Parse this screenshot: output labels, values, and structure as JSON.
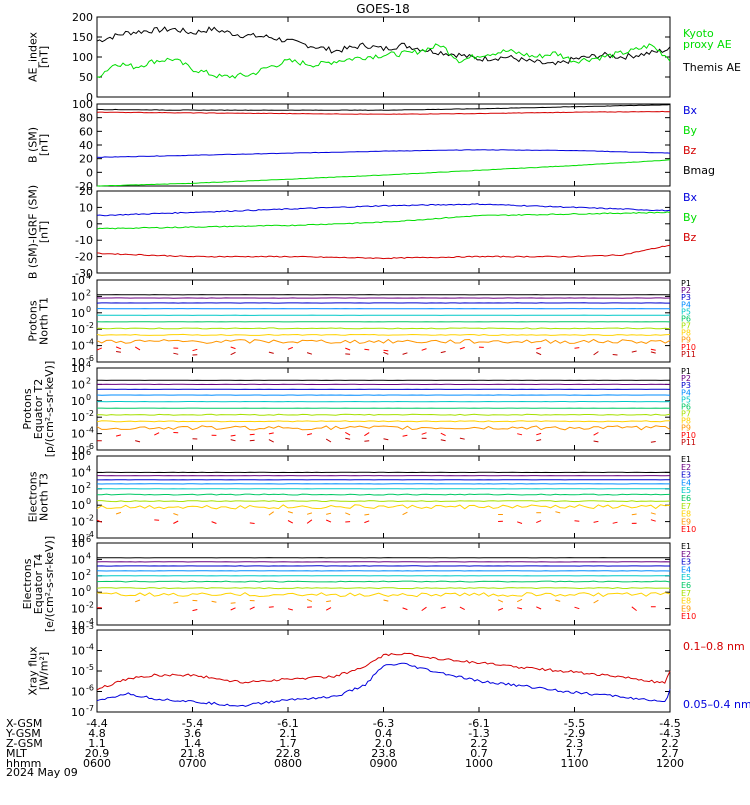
{
  "figure": {
    "title": "GOES-18",
    "date_label": "2024 May 09"
  },
  "colors": {
    "black": "#000000",
    "red": "#d40000",
    "green": "#00dd00",
    "blue": "#0000dd",
    "channel_palette": [
      "#000000",
      "#6a0080",
      "#0000cc",
      "#008cff",
      "#00c8c8",
      "#00c864",
      "#a6e000",
      "#ffd200",
      "#ff9600",
      "#ff0000",
      "#c00000"
    ]
  },
  "time_axis": {
    "ticks": [
      "0600",
      "0700",
      "0800",
      "0900",
      "1000",
      "1100",
      "1200"
    ],
    "start_hour": 6,
    "end_hour": 12
  },
  "footer": {
    "row_labels": [
      "X-GSM",
      "Y-GSM",
      "Z-GSM",
      "MLT",
      "hhmm"
    ],
    "x_gsm": [
      "-4.4",
      "-5.4",
      "-6.1",
      "-6.3",
      "-6.1",
      "-5.5",
      "-4.5"
    ],
    "y_gsm": [
      "4.8",
      "3.6",
      "2.1",
      "0.4",
      "-1.3",
      "-2.9",
      "-4.3"
    ],
    "z_gsm": [
      "1.1",
      "1.4",
      "1.7",
      "2.0",
      "2.2",
      "2.3",
      "2.2"
    ],
    "mlt": [
      "20.9",
      "21.8",
      "22.8",
      "23.8",
      "0.7",
      "1.7",
      "2.7"
    ],
    "hhmm": [
      "0600",
      "0700",
      "0800",
      "0900",
      "1000",
      "1100",
      "1200"
    ]
  },
  "chart_data": [
    {
      "type": "line",
      "ylabel": "AE_index\n[nT]",
      "ylim": [
        0,
        200
      ],
      "yticks": [
        "0",
        "50",
        "100",
        "150",
        "200"
      ],
      "scale": "linear",
      "legend": [
        {
          "label": "Kyoto\nproxy AE",
          "color": "green"
        },
        {
          "label": "Themis AE",
          "color": "black"
        }
      ],
      "series": [
        {
          "name": "Themis AE",
          "color": "black",
          "x": [
            6.0,
            6.3,
            6.5,
            6.8,
            7.0,
            7.2,
            7.5,
            7.8,
            8.0,
            8.3,
            8.5,
            8.8,
            9.0,
            9.2,
            9.5,
            9.8,
            10.0,
            10.3,
            10.5,
            10.8,
            11.0,
            11.3,
            11.5,
            11.8,
            12.0
          ],
          "y": [
            140,
            160,
            165,
            170,
            160,
            170,
            155,
            150,
            140,
            125,
            115,
            130,
            120,
            130,
            115,
            105,
            95,
            100,
            90,
            80,
            95,
            105,
            100,
            110,
            120
          ]
        },
        {
          "name": "Kyoto proxy AE",
          "color": "green",
          "x": [
            6.0,
            6.2,
            6.4,
            6.6,
            6.8,
            7.0,
            7.3,
            7.6,
            7.8,
            8.0,
            8.3,
            8.5,
            8.8,
            9.0,
            9.3,
            9.6,
            9.8,
            10.0,
            10.3,
            10.6,
            10.8,
            11.0,
            11.3,
            11.6,
            11.8,
            12.0
          ],
          "y": [
            50,
            85,
            75,
            90,
            95,
            70,
            50,
            55,
            75,
            90,
            80,
            90,
            100,
            105,
            110,
            130,
            90,
            105,
            115,
            100,
            110,
            90,
            100,
            115,
            130,
            95
          ]
        }
      ]
    },
    {
      "type": "line",
      "ylabel": "B (SM)\n[nT]",
      "ylim": [
        -20,
        100
      ],
      "yticks": [
        "-20",
        "0",
        "20",
        "40",
        "60",
        "80",
        "100"
      ],
      "scale": "linear",
      "legend": [
        {
          "label": "Bx",
          "color": "blue"
        },
        {
          "label": "By",
          "color": "green"
        },
        {
          "label": "Bz",
          "color": "red"
        },
        {
          "label": "Bmag",
          "color": "black"
        }
      ],
      "series": [
        {
          "name": "Bx",
          "color": "blue",
          "x": [
            6,
            7,
            8,
            9,
            10,
            11,
            12
          ],
          "y": [
            22,
            25,
            28,
            31,
            33,
            32,
            28
          ]
        },
        {
          "name": "By",
          "color": "green",
          "x": [
            6,
            7,
            8,
            9,
            10,
            11,
            12
          ],
          "y": [
            -20,
            -16,
            -10,
            -4,
            3,
            10,
            18
          ]
        },
        {
          "name": "Bz",
          "color": "red",
          "x": [
            6,
            7,
            8,
            9,
            10,
            11,
            12
          ],
          "y": [
            88,
            87,
            86,
            85,
            86,
            88,
            89
          ]
        },
        {
          "name": "Bmag",
          "color": "black",
          "x": [
            6,
            7,
            8,
            9,
            10,
            11,
            12
          ],
          "y": [
            92,
            91,
            91,
            91,
            93,
            96,
            99
          ]
        }
      ]
    },
    {
      "type": "line",
      "ylabel": "B (SM)-IGRF (SM)\n[nT]",
      "ylim": [
        -30,
        20
      ],
      "yticks": [
        "-30",
        "-20",
        "-10",
        "0",
        "10",
        "20"
      ],
      "scale": "linear",
      "legend": [
        {
          "label": "Bx",
          "color": "blue"
        },
        {
          "label": "By",
          "color": "green"
        },
        {
          "label": "Bz",
          "color": "red"
        }
      ],
      "series": [
        {
          "name": "Bx",
          "color": "blue",
          "x": [
            6,
            7,
            8,
            9,
            10,
            11,
            12
          ],
          "y": [
            5,
            7,
            9,
            11,
            12,
            10,
            8
          ]
        },
        {
          "name": "By",
          "color": "green",
          "x": [
            6,
            7,
            8,
            9,
            10,
            11,
            12
          ],
          "y": [
            -3,
            -2,
            -1,
            1,
            5,
            6,
            7
          ]
        },
        {
          "name": "Bz",
          "color": "red",
          "x": [
            6,
            7,
            8,
            9,
            10,
            11,
            11.5,
            12
          ],
          "y": [
            -18,
            -20,
            -20,
            -21,
            -20,
            -20,
            -19,
            -13
          ]
        }
      ]
    },
    {
      "type": "line",
      "ylabel": "Protons\nNorth T1",
      "scale": "log",
      "ylim_exp": [
        -6,
        4
      ],
      "yticks_exp": [
        -6,
        -4,
        -2,
        0,
        2,
        4
      ],
      "channel_labels": [
        "P1",
        "P2",
        "P3",
        "P4",
        "P5",
        "P6",
        "P7",
        "P8",
        "P9",
        "P10",
        "P11"
      ],
      "channel_levels_exp": [
        2.2,
        1.8,
        1.2,
        0.5,
        -0.3,
        -1.1,
        -1.9,
        -2.7,
        -3.5,
        -4.4,
        -4.9
      ]
    },
    {
      "type": "line",
      "ylabel": "Protons\nEquator T2\n[p/(cm²-s-sr-keV)]",
      "scale": "log",
      "ylim_exp": [
        -6,
        4
      ],
      "yticks_exp": [
        -6,
        -4,
        -2,
        0,
        2,
        4
      ],
      "channel_labels": [
        "P1",
        "P2",
        "P3",
        "P4",
        "P5",
        "P6",
        "P7",
        "P8",
        "P9",
        "P10",
        "P11"
      ],
      "channel_levels_exp": [
        2.5,
        2.0,
        1.4,
        0.7,
        -0.1,
        -0.9,
        -1.7,
        -2.5,
        -3.3,
        -4.1,
        -4.8
      ]
    },
    {
      "type": "line",
      "ylabel": "Electrons\nNorth T3",
      "scale": "log",
      "ylim_exp": [
        -4,
        6
      ],
      "yticks_exp": [
        -4,
        -2,
        0,
        2,
        4,
        6
      ],
      "channel_labels": [
        "E1",
        "E2",
        "E3",
        "E4",
        "E5",
        "E6",
        "E7",
        "E8",
        "E9",
        "E10"
      ],
      "channel_levels_exp": [
        4.0,
        3.6,
        3.1,
        2.6,
        2.0,
        1.3,
        0.5,
        -0.2,
        -1.0,
        -2.0
      ]
    },
    {
      "type": "line",
      "ylabel": "Electrons\nEquator T4\n[e/(cm²-s-sr-keV)]",
      "scale": "log",
      "ylim_exp": [
        -4,
        6
      ],
      "yticks_exp": [
        -4,
        -2,
        0,
        2,
        4,
        6
      ],
      "channel_labels": [
        "E1",
        "E2",
        "E3",
        "E4",
        "E5",
        "E6",
        "E7",
        "E8",
        "E9",
        "E10"
      ],
      "channel_levels_exp": [
        4.2,
        3.7,
        3.2,
        2.6,
        2.0,
        1.3,
        0.5,
        -0.3,
        -1.1,
        -2.0
      ]
    },
    {
      "type": "line",
      "ylabel": "Xray flux\n[W/m²]",
      "scale": "log",
      "ylim_exp": [
        -7,
        -3
      ],
      "yticks_exp": [
        -7,
        -6,
        -5,
        -4,
        -3
      ],
      "legend": [
        {
          "label": "0.1–0.8 nm",
          "color": "red"
        },
        {
          "label": "0.05–0.4 nm",
          "color": "blue"
        }
      ],
      "series": [
        {
          "name": "0.1–0.8 nm",
          "color": "red",
          "x": [
            6.0,
            6.3,
            6.6,
            7.0,
            7.5,
            8.0,
            8.5,
            8.8,
            9.0,
            9.2,
            9.5,
            10.0,
            10.5,
            11.0,
            11.5,
            11.95,
            12.0
          ],
          "y_exp": [
            -5.9,
            -5.4,
            -5.2,
            -5.2,
            -5.55,
            -5.4,
            -5.25,
            -4.8,
            -4.25,
            -4.15,
            -4.35,
            -4.6,
            -4.85,
            -5.05,
            -5.3,
            -5.6,
            -5.0
          ]
        },
        {
          "name": "0.05–0.4 nm",
          "color": "blue",
          "x": [
            6.0,
            6.3,
            6.6,
            7.0,
            7.5,
            8.0,
            8.5,
            8.8,
            9.0,
            9.2,
            9.5,
            10.0,
            10.5,
            11.0,
            11.5,
            11.95,
            12.0
          ],
          "y_exp": [
            -6.5,
            -6.1,
            -6.35,
            -6.5,
            -6.7,
            -6.4,
            -6.25,
            -5.7,
            -4.75,
            -4.65,
            -5.0,
            -5.5,
            -5.75,
            -6.05,
            -6.25,
            -6.55,
            -5.9
          ]
        }
      ]
    }
  ]
}
